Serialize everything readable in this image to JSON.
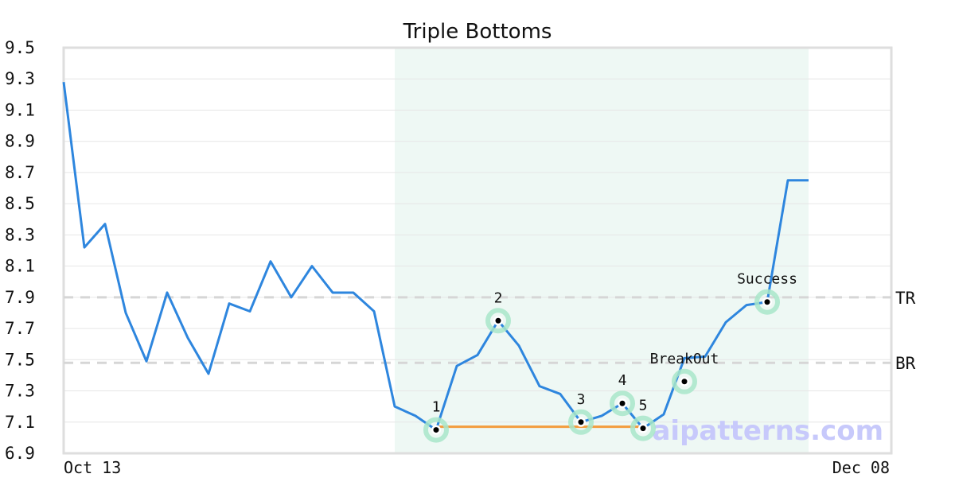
{
  "chart_data": {
    "type": "line",
    "title": "Triple Bottoms",
    "xlabel": "",
    "ylabel": "",
    "ylim": [
      6.9,
      9.5
    ],
    "y_ticks": [
      "9.5",
      "9.3",
      "9.1",
      "8.9",
      "8.7",
      "8.5",
      "8.3",
      "8.1",
      "7.9",
      "7.7",
      "7.5",
      "7.3",
      "7.1",
      "6.9"
    ],
    "x_tick_labels": {
      "start": "Oct 13",
      "end": "Dec 08"
    },
    "grid": true,
    "series": [
      {
        "color": "#2e86de",
        "values": [
          9.28,
          8.22,
          8.37,
          7.8,
          7.49,
          7.93,
          7.64,
          7.41,
          7.86,
          7.81,
          8.13,
          7.9,
          8.1,
          7.93,
          7.93,
          7.81,
          7.2,
          7.14,
          7.05,
          7.46,
          7.53,
          7.75,
          7.59,
          7.33,
          7.28,
          7.1,
          7.14,
          7.22,
          7.06,
          7.15,
          7.51,
          7.52,
          7.74,
          7.85,
          7.87,
          8.65,
          8.65
        ]
      }
    ],
    "highlight_range": {
      "start_index": 16,
      "end_index": 36,
      "color": "#eef8f4"
    },
    "levels": [
      {
        "label": "TR",
        "value": 7.9
      },
      {
        "label": "BR",
        "value": 7.48
      }
    ],
    "support_line": {
      "start_index": 18,
      "end_index": 28,
      "value": 7.07,
      "color": "#f39c3d"
    },
    "markers": [
      {
        "label": "1",
        "index": 18,
        "value": 7.05
      },
      {
        "label": "2",
        "index": 21,
        "value": 7.75
      },
      {
        "label": "3",
        "index": 25,
        "value": 7.1
      },
      {
        "label": "4",
        "index": 27,
        "value": 7.22
      },
      {
        "label": "5",
        "index": 28,
        "value": 7.06
      },
      {
        "label": "BreakOut",
        "index": 30,
        "value": 7.36
      },
      {
        "label": "Success",
        "index": 34,
        "value": 7.87
      }
    ],
    "watermark": "aipatterns.com"
  }
}
